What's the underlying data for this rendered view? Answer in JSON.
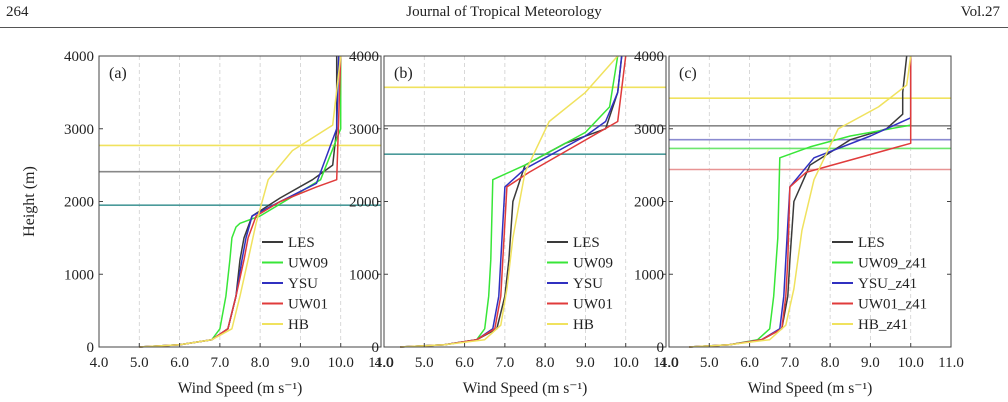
{
  "header": {
    "page_number": "264",
    "journal": "Journal of Tropical Meteorology",
    "volume": "Vol.27"
  },
  "colors": {
    "LES": "#3a3a3a",
    "UW09": "#38e638",
    "YSU": "#3030c0",
    "UW01": "#e03b3b",
    "HB": "#f0e25e"
  },
  "chart_data": [
    {
      "type": "line",
      "panel_label": "(a)",
      "xlabel": "Wind Speed (m s⁻¹)",
      "ylabel": "Height (m)",
      "xlim": [
        4.0,
        11.0
      ],
      "ylim": [
        0,
        4000
      ],
      "x_ticks": [
        "4.0",
        "5.0",
        "6.0",
        "7.0",
        "8.0",
        "9.0",
        "10.0",
        "11.0"
      ],
      "y_ticks": [
        "0",
        "1000",
        "2000",
        "3000",
        "4000"
      ],
      "grid": "vertical dashed",
      "legend_position": "lower-right",
      "series": [
        {
          "name": "LES",
          "color_key": "LES",
          "x": [
            5.0,
            6.0,
            6.8,
            7.2,
            7.4,
            7.5,
            7.6,
            7.8,
            8.5,
            9.3,
            9.8,
            9.9,
            9.9
          ],
          "y": [
            0,
            30,
            100,
            250,
            700,
            1200,
            1500,
            1800,
            2050,
            2300,
            2500,
            3000,
            4000
          ]
        },
        {
          "name": "UW09",
          "color_key": "UW09",
          "x": [
            5.0,
            6.0,
            6.8,
            7.0,
            7.15,
            7.25,
            7.3,
            7.4,
            7.5,
            8.0,
            9.5,
            10.0,
            10.0
          ],
          "y": [
            0,
            30,
            100,
            250,
            700,
            1200,
            1500,
            1650,
            1700,
            1800,
            2300,
            3000,
            4000
          ]
        },
        {
          "name": "YSU",
          "color_key": "YSU",
          "x": [
            5.0,
            6.0,
            6.8,
            7.2,
            7.4,
            7.55,
            7.65,
            7.8,
            8.5,
            9.4,
            9.9,
            9.95
          ],
          "y": [
            0,
            30,
            100,
            250,
            700,
            1200,
            1500,
            1800,
            2000,
            2250,
            3000,
            4000
          ]
        },
        {
          "name": "UW01",
          "color_key": "UW01",
          "x": [
            5.0,
            6.0,
            6.8,
            7.2,
            7.4,
            7.6,
            7.7,
            7.9,
            8.5,
            9.4,
            9.9,
            10.0
          ],
          "y": [
            0,
            30,
            100,
            250,
            700,
            1200,
            1500,
            1800,
            2000,
            2200,
            2300,
            4000
          ]
        },
        {
          "name": "HB",
          "color_key": "HB",
          "x": [
            5.0,
            6.0,
            6.8,
            7.3,
            7.5,
            7.7,
            7.9,
            8.2,
            8.8,
            9.8,
            10.0
          ],
          "y": [
            0,
            30,
            100,
            250,
            700,
            1200,
            1700,
            2300,
            2700,
            3050,
            4000
          ]
        }
      ],
      "pbl_lines": [
        {
          "y": 1950,
          "color": "#4a9a9a"
        },
        {
          "y": 2410,
          "color": "#888888"
        },
        {
          "y": 2770,
          "color": "#f0e25e"
        }
      ]
    },
    {
      "type": "line",
      "panel_label": "(b)",
      "xlabel": "Wind Speed (m s⁻¹)",
      "ylabel": "",
      "xlim": [
        4.0,
        11.0
      ],
      "ylim": [
        0,
        4000
      ],
      "x_ticks": [
        "4.0",
        "5.0",
        "6.0",
        "7.0",
        "8.0",
        "9.0",
        "10.0",
        "11.0"
      ],
      "y_ticks": [
        "0",
        "1000",
        "2000",
        "3000",
        "4000"
      ],
      "grid": "vertical dashed",
      "legend_position": "lower-right",
      "series": [
        {
          "name": "LES",
          "color_key": "LES",
          "x": [
            4.4,
            5.5,
            6.3,
            6.8,
            7.0,
            7.1,
            7.2,
            7.5,
            8.5,
            9.5,
            9.8,
            9.9
          ],
          "y": [
            0,
            30,
            100,
            250,
            700,
            1200,
            2000,
            2500,
            2800,
            3000,
            3500,
            4000
          ]
        },
        {
          "name": "UW09",
          "color_key": "UW09",
          "x": [
            4.4,
            5.5,
            6.3,
            6.5,
            6.6,
            6.65,
            6.7,
            7.5,
            9.0,
            9.6,
            9.8
          ],
          "y": [
            0,
            30,
            100,
            250,
            700,
            1200,
            2300,
            2500,
            2950,
            3300,
            4000
          ]
        },
        {
          "name": "YSU",
          "color_key": "YSU",
          "x": [
            4.4,
            5.5,
            6.3,
            6.7,
            6.85,
            6.9,
            7.0,
            7.5,
            9.0,
            9.5,
            9.8,
            9.9
          ],
          "y": [
            0,
            30,
            100,
            250,
            700,
            1200,
            2200,
            2450,
            2900,
            3100,
            3500,
            4000
          ]
        },
        {
          "name": "UW01",
          "color_key": "UW01",
          "x": [
            4.4,
            5.5,
            6.3,
            6.75,
            6.9,
            6.95,
            7.05,
            7.6,
            9.8,
            10.0
          ],
          "y": [
            0,
            30,
            100,
            250,
            700,
            1200,
            2200,
            2400,
            3100,
            4000
          ]
        },
        {
          "name": "HB",
          "color_key": "HB",
          "x": [
            4.4,
            5.5,
            6.5,
            6.9,
            7.05,
            7.2,
            7.5,
            8.1,
            9.0,
            9.8
          ],
          "y": [
            0,
            30,
            100,
            300,
            800,
            1500,
            2400,
            3100,
            3500,
            4000
          ]
        }
      ],
      "pbl_lines": [
        {
          "y": 2650,
          "color": "#4a9a9a"
        },
        {
          "y": 3040,
          "color": "#888888"
        },
        {
          "y": 3570,
          "color": "#f0e25e"
        }
      ]
    },
    {
      "type": "line",
      "panel_label": "(c)",
      "xlabel": "Wind Speed (m s⁻¹)",
      "ylabel": "",
      "xlim": [
        4.0,
        11.0
      ],
      "ylim": [
        0,
        4000
      ],
      "x_ticks": [
        "4.0",
        "5.0",
        "6.0",
        "7.0",
        "8.0",
        "9.0",
        "10.0",
        "11.0"
      ],
      "y_ticks": [
        "0",
        "1000",
        "2000",
        "3000",
        "4000"
      ],
      "grid": "vertical dashed",
      "legend_position": "lower-right",
      "series": [
        {
          "name": "LES",
          "color_key": "LES",
          "x": [
            4.5,
            5.5,
            6.3,
            6.8,
            6.95,
            7.0,
            7.1,
            7.5,
            8.5,
            9.4,
            9.8,
            9.8,
            9.9
          ],
          "y": [
            0,
            30,
            100,
            250,
            700,
            1200,
            2000,
            2500,
            2850,
            3000,
            3200,
            3500,
            4000
          ]
        },
        {
          "name": "UW09_z41",
          "color_key": "UW09",
          "x": [
            4.5,
            5.5,
            6.2,
            6.5,
            6.6,
            6.7,
            6.75,
            7.5,
            8.5,
            10.0,
            10.0
          ],
          "y": [
            0,
            30,
            100,
            250,
            700,
            1500,
            2600,
            2750,
            2900,
            3050,
            4000
          ]
        },
        {
          "name": "YSU_z41",
          "color_key": "YSU",
          "x": [
            4.5,
            5.5,
            6.3,
            6.75,
            6.85,
            6.9,
            7.0,
            7.6,
            9.0,
            10.0,
            10.0
          ],
          "y": [
            0,
            30,
            100,
            250,
            700,
            1200,
            2200,
            2600,
            2900,
            3150,
            4000
          ]
        },
        {
          "name": "UW01_z41",
          "color_key": "UW01",
          "x": [
            4.5,
            5.5,
            6.3,
            6.8,
            6.9,
            6.95,
            7.0,
            7.4,
            10.0,
            10.0
          ],
          "y": [
            0,
            30,
            100,
            250,
            700,
            1200,
            2200,
            2400,
            2800,
            4000
          ]
        },
        {
          "name": "HB_z41",
          "color_key": "HB",
          "x": [
            4.5,
            5.5,
            6.5,
            6.9,
            7.1,
            7.3,
            7.6,
            8.2,
            9.2,
            9.9,
            10.0
          ],
          "y": [
            0,
            30,
            100,
            300,
            800,
            1600,
            2300,
            3000,
            3300,
            3600,
            4000
          ]
        }
      ],
      "pbl_lines": [
        {
          "y": 2440,
          "color": "#e89494"
        },
        {
          "y": 2730,
          "color": "#6ee66e"
        },
        {
          "y": 2850,
          "color": "#8a8ad0"
        },
        {
          "y": 3040,
          "color": "#888888"
        },
        {
          "y": 3420,
          "color": "#f0e25e"
        }
      ]
    }
  ]
}
